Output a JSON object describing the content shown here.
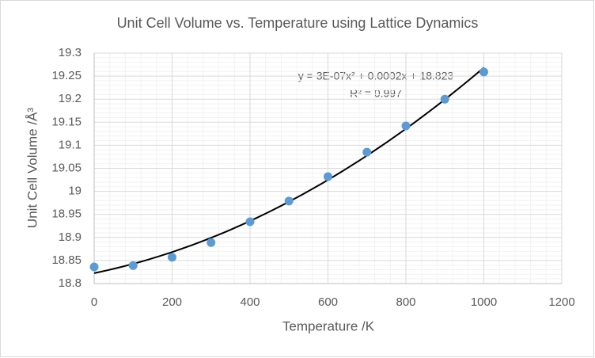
{
  "chart_data": {
    "type": "scatter",
    "title": "Unit Cell Volume vs. Temperature using Lattice Dynamics",
    "x_label": "Temperature /K",
    "y_label": "Unit Cell Volume /Å³",
    "series": [
      {
        "name": "Unit Cell Volume",
        "color": "#5b9bd5",
        "x": [
          0,
          100,
          200,
          300,
          400,
          500,
          600,
          700,
          800,
          900,
          1000
        ],
        "values": [
          18.836,
          18.839,
          18.857,
          18.889,
          18.934,
          18.979,
          19.032,
          19.085,
          19.142,
          19.2,
          19.259
        ]
      }
    ],
    "trendline": {
      "type": "polynomial",
      "order": 2,
      "color": "#000000",
      "equation": "y = 3E-07x² + 0.0002x + 18.823",
      "r_squared": "R² = 0.997"
    },
    "xlim": [
      0,
      1200
    ],
    "xticks": [
      0,
      200,
      400,
      600,
      800,
      1000,
      1200
    ],
    "ylim": [
      18.8,
      19.3
    ],
    "yticks": [
      18.8,
      18.85,
      18.9,
      18.95,
      19,
      19.05,
      19.1,
      19.15,
      19.2,
      19.25,
      19.3
    ],
    "grid": true,
    "minor_grid": true
  }
}
